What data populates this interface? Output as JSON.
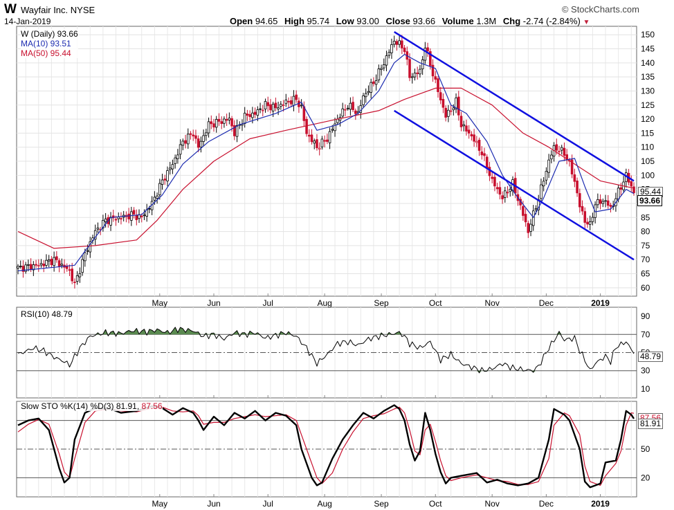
{
  "header": {
    "symbol": "W",
    "company": "Wayfair Inc. NYSE",
    "credit": "© StockCharts.com",
    "date": "14-Jan-2019",
    "open_label": "Open",
    "open": "94.65",
    "high_label": "High",
    "high": "95.74",
    "low_label": "Low",
    "low": "93.00",
    "close_label": "Close",
    "close": "93.66",
    "volume_label": "Volume",
    "volume": "1.3M",
    "chg_label": "Chg",
    "chg": "-2.74 (-2.84%)",
    "chg_arrow": "▼"
  },
  "legend": {
    "price": "W (Daily) 93.66",
    "ma10": "MA(10) 93.51",
    "ma50": "MA(50) 95.44",
    "rsi": "RSI(10) 48.79",
    "sto_prefix": "Slow STO %K(14) %D(3) 81.91,",
    "sto_d": "87.56"
  },
  "badges": {
    "price_close": "93.66",
    "price_ma": "95.44",
    "rsi": "48.79",
    "sto_k": "81.91",
    "sto_d": "87.56"
  },
  "colors": {
    "up": "#000000",
    "down": "#c8102e",
    "ma10": "#1c2bb0",
    "ma50": "#c8102e",
    "channel": "#1010e0",
    "rsi_fill": "#5a8a50"
  },
  "chart_data": [
    {
      "type": "candlestick",
      "ylim": [
        57,
        153
      ],
      "yticks": [
        60,
        65,
        70,
        75,
        80,
        85,
        90,
        95,
        100,
        105,
        110,
        115,
        120,
        125,
        130,
        135,
        140,
        145,
        150
      ],
      "xticks": [
        "May",
        "Jun",
        "Jul",
        "Aug",
        "Sep",
        "Oct",
        "Nov",
        "Dec",
        "2019"
      ],
      "close_path": [
        [
          0,
          67
        ],
        [
          8,
          68
        ],
        [
          14,
          70
        ],
        [
          20,
          66
        ],
        [
          22,
          61
        ],
        [
          26,
          72
        ],
        [
          30,
          80
        ],
        [
          34,
          84
        ],
        [
          40,
          85
        ],
        [
          44,
          86
        ],
        [
          48,
          85
        ],
        [
          52,
          90
        ],
        [
          56,
          98
        ],
        [
          60,
          104
        ],
        [
          64,
          112
        ],
        [
          68,
          115
        ],
        [
          70,
          110
        ],
        [
          74,
          118
        ],
        [
          78,
          119
        ],
        [
          82,
          120
        ],
        [
          84,
          115
        ],
        [
          88,
          121
        ],
        [
          92,
          122
        ],
        [
          96,
          125
        ],
        [
          100,
          124
        ],
        [
          104,
          126
        ],
        [
          108,
          127
        ],
        [
          110,
          124
        ],
        [
          112,
          115
        ],
        [
          116,
          110
        ],
        [
          120,
          113
        ],
        [
          124,
          120
        ],
        [
          128,
          125
        ],
        [
          132,
          122
        ],
        [
          134,
          128
        ],
        [
          138,
          133
        ],
        [
          142,
          140
        ],
        [
          146,
          148
        ],
        [
          150,
          145
        ],
        [
          152,
          135
        ],
        [
          156,
          137
        ],
        [
          158,
          146
        ],
        [
          162,
          133
        ],
        [
          166,
          121
        ],
        [
          170,
          126
        ],
        [
          172,
          118
        ],
        [
          176,
          114
        ],
        [
          180,
          108
        ],
        [
          184,
          98
        ],
        [
          188,
          92
        ],
        [
          192,
          97
        ],
        [
          196,
          86
        ],
        [
          198,
          80
        ],
        [
          200,
          86
        ],
        [
          202,
          92
        ],
        [
          206,
          105
        ],
        [
          208,
          110
        ],
        [
          212,
          108
        ],
        [
          214,
          104
        ],
        [
          216,
          98
        ],
        [
          218,
          89
        ],
        [
          220,
          84
        ],
        [
          222,
          82
        ],
        [
          224,
          90
        ],
        [
          228,
          91
        ],
        [
          230,
          88
        ],
        [
          232,
          92
        ],
        [
          236,
          100
        ],
        [
          238,
          96
        ],
        [
          239,
          94
        ]
      ],
      "ma10_path": [
        [
          0,
          66
        ],
        [
          22,
          68
        ],
        [
          30,
          78
        ],
        [
          36,
          85
        ],
        [
          48,
          86
        ],
        [
          56,
          93
        ],
        [
          64,
          104
        ],
        [
          74,
          112
        ],
        [
          86,
          118
        ],
        [
          100,
          122
        ],
        [
          110,
          126
        ],
        [
          116,
          116
        ],
        [
          124,
          118
        ],
        [
          132,
          122
        ],
        [
          140,
          130
        ],
        [
          146,
          140
        ],
        [
          150,
          143
        ],
        [
          156,
          140
        ],
        [
          162,
          138
        ],
        [
          168,
          125
        ],
        [
          174,
          122
        ],
        [
          182,
          112
        ],
        [
          188,
          100
        ],
        [
          194,
          92
        ],
        [
          200,
          85
        ],
        [
          204,
          92
        ],
        [
          210,
          105
        ],
        [
          216,
          106
        ],
        [
          220,
          96
        ],
        [
          224,
          87
        ],
        [
          230,
          88
        ],
        [
          236,
          95
        ],
        [
          239,
          93.5
        ]
      ],
      "ma50_path": [
        [
          0,
          80
        ],
        [
          14,
          74
        ],
        [
          30,
          75
        ],
        [
          46,
          77
        ],
        [
          54,
          84
        ],
        [
          64,
          95
        ],
        [
          76,
          105
        ],
        [
          90,
          113
        ],
        [
          104,
          116
        ],
        [
          124,
          120
        ],
        [
          140,
          123
        ],
        [
          150,
          127
        ],
        [
          162,
          131
        ],
        [
          172,
          131
        ],
        [
          184,
          125
        ],
        [
          196,
          115
        ],
        [
          206,
          110
        ],
        [
          216,
          104
        ],
        [
          226,
          98
        ],
        [
          236,
          96
        ],
        [
          239,
          95.44
        ]
      ],
      "channel_upper": [
        [
          146,
          151
        ],
        [
          239,
          98
        ]
      ],
      "channel_lower": [
        [
          146,
          123
        ],
        [
          239,
          70
        ]
      ]
    },
    {
      "type": "line",
      "name": "RSI(10)",
      "ylim": [
        0,
        100
      ],
      "yticks": [
        10,
        30,
        50,
        70,
        90
      ],
      "reference_lines": [
        30,
        50,
        70
      ],
      "path": [
        [
          0,
          48
        ],
        [
          6,
          55
        ],
        [
          10,
          52
        ],
        [
          14,
          45
        ],
        [
          18,
          40
        ],
        [
          20,
          36
        ],
        [
          24,
          55
        ],
        [
          28,
          68
        ],
        [
          34,
          72
        ],
        [
          40,
          71
        ],
        [
          44,
          74
        ],
        [
          50,
          73
        ],
        [
          54,
          75
        ],
        [
          58,
          72
        ],
        [
          62,
          76
        ],
        [
          68,
          74
        ],
        [
          72,
          68
        ],
        [
          76,
          70
        ],
        [
          80,
          65
        ],
        [
          84,
          72
        ],
        [
          88,
          70
        ],
        [
          92,
          72
        ],
        [
          96,
          66
        ],
        [
          100,
          69
        ],
        [
          104,
          72
        ],
        [
          108,
          68
        ],
        [
          112,
          55
        ],
        [
          116,
          38
        ],
        [
          120,
          48
        ],
        [
          124,
          60
        ],
        [
          128,
          62
        ],
        [
          132,
          58
        ],
        [
          136,
          65
        ],
        [
          140,
          68
        ],
        [
          144,
          70
        ],
        [
          148,
          72
        ],
        [
          150,
          68
        ],
        [
          152,
          60
        ],
        [
          156,
          55
        ],
        [
          160,
          62
        ],
        [
          164,
          42
        ],
        [
          168,
          48
        ],
        [
          172,
          38
        ],
        [
          176,
          34
        ],
        [
          180,
          30
        ],
        [
          184,
          32
        ],
        [
          188,
          38
        ],
        [
          192,
          33
        ],
        [
          196,
          31
        ],
        [
          200,
          30
        ],
        [
          202,
          35
        ],
        [
          206,
          55
        ],
        [
          210,
          72
        ],
        [
          212,
          64
        ],
        [
          216,
          66
        ],
        [
          218,
          52
        ],
        [
          220,
          42
        ],
        [
          222,
          30
        ],
        [
          224,
          38
        ],
        [
          228,
          46
        ],
        [
          230,
          40
        ],
        [
          232,
          56
        ],
        [
          236,
          62
        ],
        [
          239,
          48.79
        ]
      ]
    },
    {
      "type": "line",
      "name": "Slow STO",
      "ylim": [
        0,
        100
      ],
      "yticks": [
        20,
        50,
        80
      ],
      "reference_lines": [
        20,
        50,
        80
      ],
      "k_path": [
        [
          0,
          75
        ],
        [
          4,
          80
        ],
        [
          8,
          82
        ],
        [
          12,
          70
        ],
        [
          16,
          30
        ],
        [
          18,
          15
        ],
        [
          20,
          20
        ],
        [
          22,
          60
        ],
        [
          26,
          88
        ],
        [
          30,
          93
        ],
        [
          36,
          92
        ],
        [
          40,
          88
        ],
        [
          46,
          90
        ],
        [
          52,
          95
        ],
        [
          56,
          93
        ],
        [
          60,
          86
        ],
        [
          64,
          93
        ],
        [
          68,
          88
        ],
        [
          70,
          80
        ],
        [
          72,
          70
        ],
        [
          76,
          84
        ],
        [
          80,
          75
        ],
        [
          84,
          88
        ],
        [
          88,
          82
        ],
        [
          92,
          90
        ],
        [
          96,
          80
        ],
        [
          100,
          88
        ],
        [
          104,
          85
        ],
        [
          108,
          75
        ],
        [
          110,
          50
        ],
        [
          114,
          20
        ],
        [
          116,
          12
        ],
        [
          118,
          15
        ],
        [
          122,
          40
        ],
        [
          126,
          60
        ],
        [
          130,
          75
        ],
        [
          134,
          88
        ],
        [
          138,
          82
        ],
        [
          142,
          90
        ],
        [
          146,
          96
        ],
        [
          148,
          92
        ],
        [
          150,
          80
        ],
        [
          152,
          55
        ],
        [
          154,
          38
        ],
        [
          156,
          48
        ],
        [
          158,
          88
        ],
        [
          160,
          70
        ],
        [
          162,
          45
        ],
        [
          164,
          26
        ],
        [
          166,
          14
        ],
        [
          168,
          20
        ],
        [
          172,
          22
        ],
        [
          176,
          24
        ],
        [
          178,
          25
        ],
        [
          182,
          15
        ],
        [
          186,
          18
        ],
        [
          190,
          14
        ],
        [
          194,
          12
        ],
        [
          198,
          14
        ],
        [
          202,
          20
        ],
        [
          206,
          60
        ],
        [
          208,
          92
        ],
        [
          212,
          86
        ],
        [
          214,
          80
        ],
        [
          218,
          50
        ],
        [
          220,
          16
        ],
        [
          222,
          10
        ],
        [
          226,
          14
        ],
        [
          228,
          36
        ],
        [
          232,
          38
        ],
        [
          234,
          60
        ],
        [
          236,
          90
        ],
        [
          238,
          86
        ],
        [
          239,
          81.91
        ]
      ],
      "d_path": [
        [
          0,
          68
        ],
        [
          4,
          76
        ],
        [
          8,
          81
        ],
        [
          12,
          76
        ],
        [
          16,
          45
        ],
        [
          18,
          26
        ],
        [
          20,
          20
        ],
        [
          22,
          40
        ],
        [
          26,
          78
        ],
        [
          30,
          90
        ],
        [
          36,
          92
        ],
        [
          40,
          90
        ],
        [
          46,
          89
        ],
        [
          52,
          93
        ],
        [
          56,
          94
        ],
        [
          60,
          90
        ],
        [
          64,
          89
        ],
        [
          68,
          90
        ],
        [
          70,
          85
        ],
        [
          72,
          76
        ],
        [
          76,
          78
        ],
        [
          80,
          78
        ],
        [
          84,
          82
        ],
        [
          88,
          84
        ],
        [
          92,
          86
        ],
        [
          96,
          84
        ],
        [
          100,
          85
        ],
        [
          104,
          86
        ],
        [
          108,
          80
        ],
        [
          110,
          65
        ],
        [
          114,
          35
        ],
        [
          116,
          20
        ],
        [
          118,
          14
        ],
        [
          122,
          25
        ],
        [
          126,
          50
        ],
        [
          130,
          68
        ],
        [
          134,
          82
        ],
        [
          138,
          85
        ],
        [
          142,
          87
        ],
        [
          146,
          92
        ],
        [
          148,
          94
        ],
        [
          150,
          88
        ],
        [
          152,
          70
        ],
        [
          154,
          48
        ],
        [
          156,
          44
        ],
        [
          158,
          70
        ],
        [
          160,
          76
        ],
        [
          162,
          58
        ],
        [
          164,
          38
        ],
        [
          166,
          22
        ],
        [
          168,
          17
        ],
        [
          172,
          20
        ],
        [
          176,
          22
        ],
        [
          178,
          23
        ],
        [
          182,
          20
        ],
        [
          186,
          17
        ],
        [
          190,
          16
        ],
        [
          194,
          13
        ],
        [
          198,
          13
        ],
        [
          202,
          16
        ],
        [
          206,
          40
        ],
        [
          208,
          75
        ],
        [
          212,
          88
        ],
        [
          214,
          85
        ],
        [
          218,
          65
        ],
        [
          220,
          32
        ],
        [
          222,
          16
        ],
        [
          226,
          12
        ],
        [
          228,
          22
        ],
        [
          232,
          35
        ],
        [
          234,
          48
        ],
        [
          236,
          75
        ],
        [
          238,
          88
        ],
        [
          239,
          87.56
        ]
      ]
    }
  ]
}
